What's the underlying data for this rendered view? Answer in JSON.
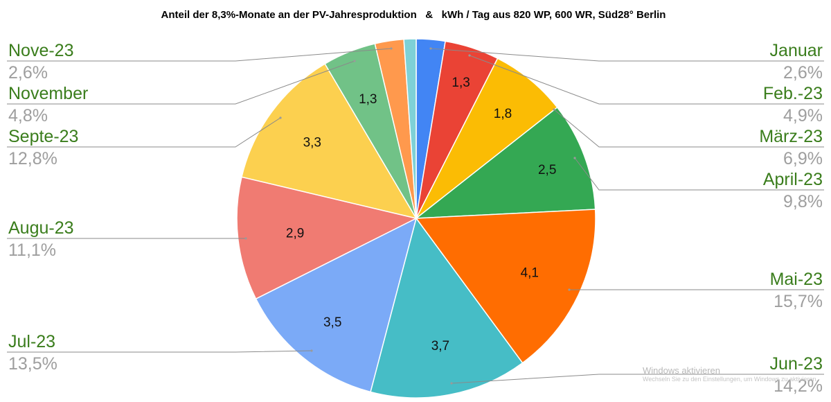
{
  "watermark": {
    "line1": "Windows aktivieren",
    "line2": "Wechseln Sie zu den Einstellungen, um Windows zu aktivieren."
  },
  "chart_data": {
    "type": "pie",
    "title": "Anteil der 8,3%-Monate an der PV-Jahresproduktion   &   kWh / Tag aus 820 WP, 600 WR, Süd28° Berlin",
    "legend_position": "both sides",
    "slices": [
      {
        "label": "Januar",
        "percent": 2.6,
        "percent_label": "2,6%",
        "value_label": "",
        "color": "#4285f4"
      },
      {
        "label": "Feb.-23",
        "percent": 4.9,
        "percent_label": "4,9%",
        "value_label": "1,3",
        "color": "#ea4335"
      },
      {
        "label": "März-23",
        "percent": 6.9,
        "percent_label": "6,9%",
        "value_label": "1,8",
        "color": "#fbbc04"
      },
      {
        "label": "April-23",
        "percent": 9.8,
        "percent_label": "9,8%",
        "value_label": "2,5",
        "color": "#34a853"
      },
      {
        "label": "Mai-23",
        "percent": 15.7,
        "percent_label": "15,7%",
        "value_label": "4,1",
        "color": "#ff6d01"
      },
      {
        "label": "Jun-23",
        "percent": 14.2,
        "percent_label": "14,2%",
        "value_label": "3,7",
        "color": "#46bdc6"
      },
      {
        "label": "Jul-23",
        "percent": 13.5,
        "percent_label": "13,5%",
        "value_label": "3,5",
        "color": "#7baaf7"
      },
      {
        "label": "Augu-23",
        "percent": 11.1,
        "percent_label": "11,1%",
        "value_label": "2,9",
        "color": "#f07b72"
      },
      {
        "label": "Septe-23",
        "percent": 12.8,
        "percent_label": "12,8%",
        "value_label": "3,3",
        "color": "#fcd04f"
      },
      {
        "label": "November",
        "percent": 4.8,
        "percent_label": "4,8%",
        "value_label": "1,3",
        "color": "#71c287"
      },
      {
        "label": "Nove-23",
        "percent": 2.6,
        "percent_label": "2,6%",
        "value_label": "",
        "color": "#ff994d"
      },
      {
        "label": "",
        "percent": 1.1,
        "percent_label": "",
        "value_label": "",
        "color": "#7ed1d7"
      }
    ]
  }
}
